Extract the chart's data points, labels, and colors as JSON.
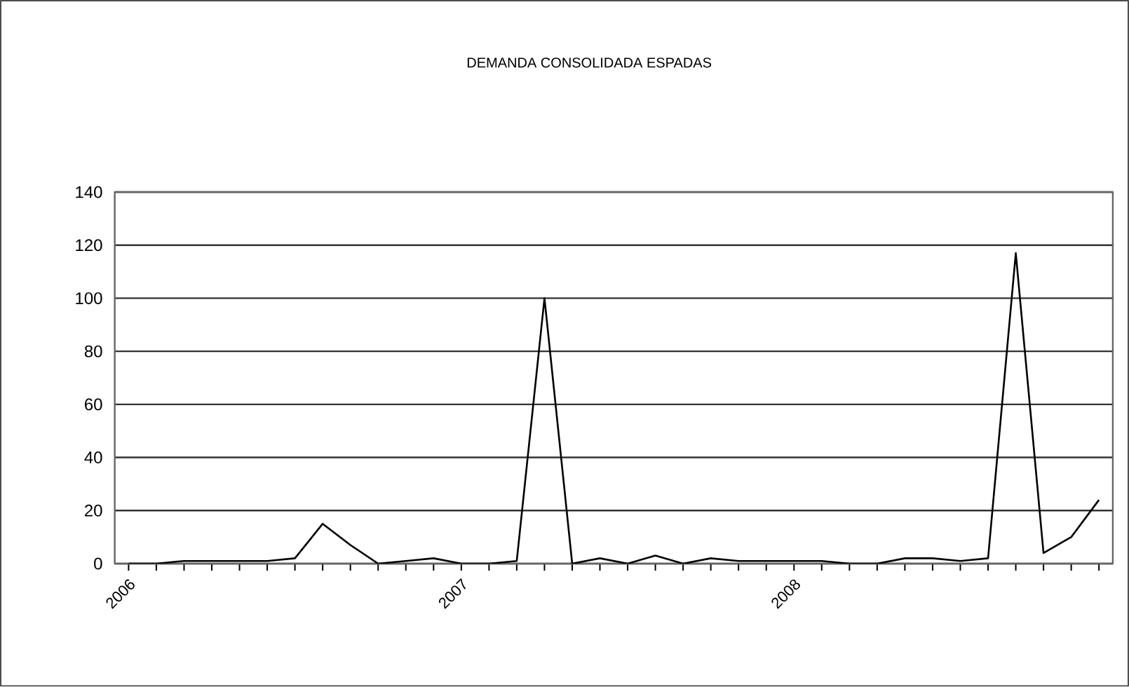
{
  "chart_data": {
    "type": "line",
    "title": "DEMANDA CONSOLIDADA ESPADAS",
    "categories": [
      "2006",
      null,
      null,
      null,
      null,
      null,
      null,
      null,
      null,
      null,
      null,
      null,
      "2007",
      null,
      null,
      null,
      null,
      null,
      null,
      null,
      null,
      null,
      null,
      null,
      "2008",
      null,
      null,
      null,
      null,
      null,
      null,
      null,
      null,
      null,
      null,
      null
    ],
    "series": [
      {
        "color": "#000000",
        "values": [
          0,
          0,
          1,
          1,
          1,
          1,
          2,
          15,
          7,
          0,
          1,
          2,
          0,
          0,
          1,
          100,
          0,
          2,
          0,
          3,
          0,
          2,
          1,
          1,
          1,
          1,
          0,
          0,
          2,
          2,
          1,
          2,
          117,
          4,
          10,
          24
        ]
      }
    ],
    "ylim": [
      0,
      140
    ],
    "yticks": [
      0,
      20,
      40,
      60,
      80,
      100,
      120,
      140
    ],
    "grid": "y",
    "marker": "none",
    "line_style": "solid"
  }
}
